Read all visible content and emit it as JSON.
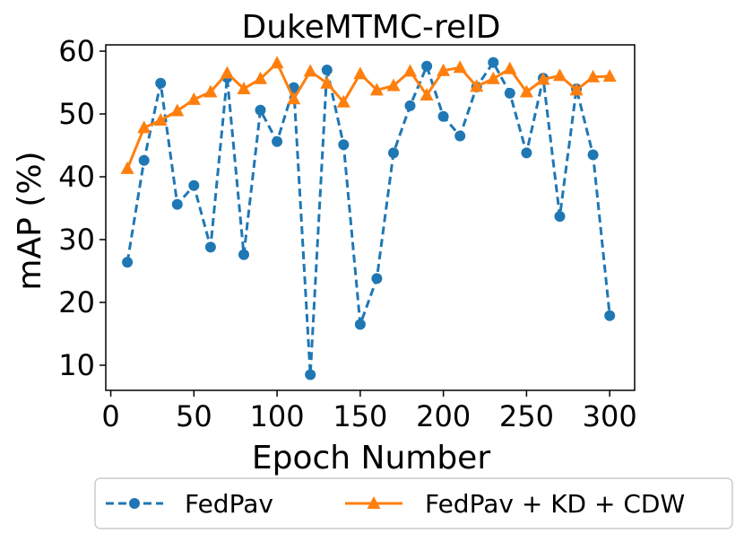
{
  "chart_data": {
    "type": "line",
    "title": "DukeMTMC-reID",
    "xlabel": "Epoch Number",
    "ylabel": "mAP (%)",
    "xlim": [
      -3,
      315
    ],
    "ylim": [
      6,
      61
    ],
    "xticks": [
      0,
      50,
      100,
      150,
      200,
      250,
      300
    ],
    "yticks": [
      10,
      20,
      30,
      40,
      50,
      60
    ],
    "grid": false,
    "legend_position": "bottom",
    "x": [
      10,
      20,
      30,
      40,
      50,
      60,
      70,
      80,
      90,
      100,
      110,
      120,
      130,
      140,
      150,
      160,
      170,
      180,
      190,
      200,
      210,
      220,
      230,
      240,
      250,
      260,
      270,
      280,
      290,
      300
    ],
    "series": [
      {
        "name": "FedPav",
        "color": "#1f77b4",
        "marker": "circle",
        "linestyle": "dashed",
        "values": [
          26.4,
          42.6,
          54.9,
          35.6,
          38.6,
          28.8,
          55.8,
          27.6,
          50.6,
          45.6,
          54.2,
          8.5,
          57.0,
          45.1,
          16.5,
          23.8,
          43.8,
          51.3,
          57.6,
          49.6,
          46.5,
          54.3,
          58.2,
          53.3,
          43.8,
          55.7,
          33.7,
          54.0,
          43.5,
          17.9
        ]
      },
      {
        "name": "FedPav + KD + CDW",
        "color": "#ff7f0e",
        "marker": "triangle",
        "linestyle": "solid",
        "values": [
          41.3,
          47.8,
          49.0,
          50.5,
          52.3,
          53.5,
          56.5,
          54.0,
          55.6,
          58.1,
          52.4,
          56.8,
          54.9,
          51.9,
          56.4,
          53.8,
          54.5,
          56.8,
          53.0,
          56.9,
          57.4,
          54.4,
          55.6,
          57.2,
          53.5,
          55.5,
          56.1,
          53.8,
          55.9,
          56.0
        ]
      }
    ]
  }
}
